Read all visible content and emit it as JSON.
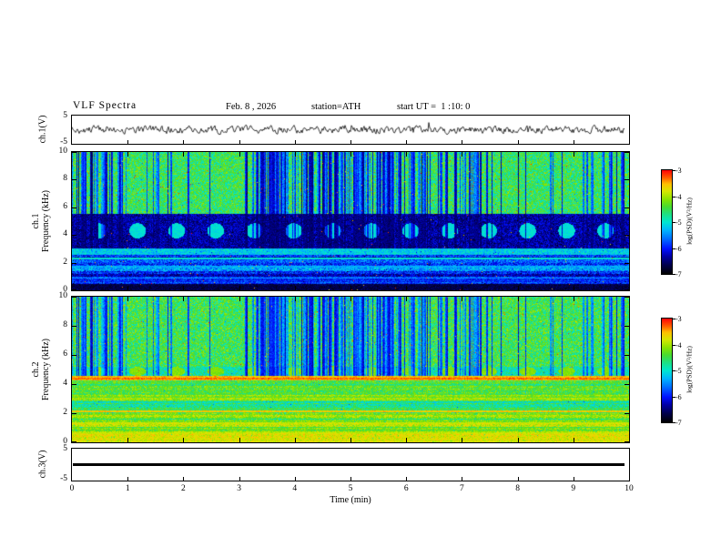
{
  "header": {
    "title": "VLF Spectra",
    "date": "Feb. 8 , 2026",
    "station": "station=ATH",
    "start_ut": "start UT =  1 :10: 0"
  },
  "panels": {
    "wave1": {
      "ylabel": "ch.1(V)",
      "yticks": [
        "5",
        "-5"
      ]
    },
    "spec1": {
      "ylabel1": "ch.1",
      "ylabel2": "Frequency (kHz)",
      "yticks": [
        10,
        8,
        6,
        4,
        2,
        0
      ]
    },
    "spec2": {
      "ylabel1": "ch.2",
      "ylabel2": "Frequency (kHz)",
      "yticks": [
        10,
        8,
        6,
        4,
        2,
        0
      ]
    },
    "wave3": {
      "ylabel": "ch.3(V)",
      "yticks": [
        "5",
        "-5"
      ]
    }
  },
  "xaxis": {
    "label": "Time (min)",
    "ticks": [
      0,
      1,
      2,
      3,
      4,
      5,
      6,
      7,
      8,
      9,
      10
    ]
  },
  "colorbar": {
    "label": "log(PSD)(V²/Hz)",
    "ticks": [
      -3,
      -4,
      -5,
      -6,
      -7
    ],
    "min": -7,
    "max": -3,
    "stops": [
      [
        0.0,
        "#000004"
      ],
      [
        0.08,
        "#00004a"
      ],
      [
        0.16,
        "#0000a0"
      ],
      [
        0.24,
        "#0010ff"
      ],
      [
        0.33,
        "#0068ff"
      ],
      [
        0.42,
        "#00b4ff"
      ],
      [
        0.5,
        "#00e8d0"
      ],
      [
        0.58,
        "#20e080"
      ],
      [
        0.65,
        "#48dc30"
      ],
      [
        0.72,
        "#88e400"
      ],
      [
        0.8,
        "#d8e800"
      ],
      [
        0.87,
        "#ffc000"
      ],
      [
        0.93,
        "#ff6000"
      ],
      [
        1.0,
        "#ff0808"
      ]
    ]
  },
  "chart_data": [
    {
      "type": "line",
      "name": "ch.1 time series",
      "ylabel": "ch.1(V)",
      "xlim": [
        0,
        10
      ],
      "ylim": [
        -5,
        5
      ],
      "mean_V": 0,
      "noise_amplitude_V": 1.5,
      "description": "continuous broadband noise trace centred on 0 V, occasional spikes to about ±3 V",
      "color": "#000000"
    },
    {
      "type": "heatmap",
      "name": "ch.1 spectrogram",
      "xlabel": "Time (min)",
      "ylabel": "ch.1 Frequency (kHz)",
      "xlim": [
        0,
        10
      ],
      "ylim": [
        0,
        10
      ],
      "zlabel": "log(PSD)(V²/Hz)",
      "zlim": [
        -7,
        -3
      ],
      "bands": [
        {
          "fmin": 5.5,
          "fmax": 10.01,
          "level": -4.55,
          "jitter": 1.1,
          "speckle": 0.006
        },
        {
          "fmin": 3.0,
          "fmax": 5.5,
          "level": -6.35,
          "jitter": 0.7,
          "speckle": 0.0015
        },
        {
          "fmin": 2.55,
          "fmax": 3.0,
          "level": -5.15,
          "jitter": 0.7,
          "speckle": 0.001
        },
        {
          "fmin": 1.2,
          "fmax": 2.55,
          "level": -5.75,
          "jitter": 0.9,
          "rows": 1.0,
          "speckle": 0.002
        },
        {
          "fmin": 0.45,
          "fmax": 1.2,
          "level": -6.15,
          "jitter": 0.7,
          "rows": 0.8,
          "speckle": 0.003
        },
        {
          "fmin": 0.0,
          "fmax": 0.45,
          "level": -6.7,
          "jitter": 0.4,
          "speckle": 0.004
        }
      ],
      "lines": [
        {
          "f": 2.3,
          "halfwidth": 0.06,
          "level": -5.0
        },
        {
          "f": 1.7,
          "halfwidth": 0.05,
          "level": -5.35
        },
        {
          "f": 0.9,
          "halfwidth": 0.05,
          "level": -5.6
        }
      ],
      "blobs": {
        "f_center": 4.3,
        "f_halfwidth": 0.55,
        "period_min": 0.7,
        "first_min": 0.48,
        "duration_min": 0.3,
        "level": -5.05,
        "description": "periodic brighter patches inside the 3-5.5 kHz low-power band"
      },
      "stripes": {
        "fmin": 3.0,
        "fmax": 10,
        "coverage": 0.34,
        "level": -6.55,
        "description": "clustered vertical low-power dropout stripes above 3 kHz"
      }
    },
    {
      "type": "heatmap",
      "name": "ch.2 spectrogram",
      "xlabel": "Time (min)",
      "ylabel": "ch.2 Frequency (kHz)",
      "xlim": [
        0,
        10
      ],
      "ylim": [
        0,
        10
      ],
      "zlabel": "log(PSD)(V²/Hz)",
      "zlim": [
        -7,
        -3
      ],
      "bands": [
        {
          "fmin": 5.2,
          "fmax": 10.01,
          "level": -4.5,
          "jitter": 1.1,
          "speckle": 0.005
        },
        {
          "fmin": 4.55,
          "fmax": 5.2,
          "level": -4.85,
          "jitter": 0.8,
          "speckle": 0.002
        },
        {
          "fmin": 4.25,
          "fmax": 4.55,
          "level": -3.55,
          "jitter": 0.5
        },
        {
          "fmin": 3.25,
          "fmax": 4.25,
          "level": -4.35,
          "jitter": 0.8,
          "rows": 0.7
        },
        {
          "fmin": 2.9,
          "fmax": 3.25,
          "level": -4.1,
          "jitter": 0.6,
          "rows": 0.5
        },
        {
          "fmin": 2.0,
          "fmax": 2.9,
          "level": -4.55,
          "jitter": 0.8,
          "rows": 0.8
        },
        {
          "fmin": 0.95,
          "fmax": 2.0,
          "level": -4.3,
          "jitter": 0.7,
          "rows": 0.9
        },
        {
          "fmin": 0.3,
          "fmax": 0.95,
          "level": -4.1,
          "jitter": 0.6,
          "rows": 0.7
        },
        {
          "fmin": 0.0,
          "fmax": 0.3,
          "level": -3.8,
          "jitter": 0.5
        }
      ],
      "lines": [
        {
          "f": 4.38,
          "halfwidth": 0.07,
          "level": -3.3
        },
        {
          "f": 2.12,
          "halfwidth": 0.07,
          "level": -3.6
        },
        {
          "f": 1.3,
          "halfwidth": 0.05,
          "level": -3.85
        },
        {
          "f": 0.62,
          "halfwidth": 0.05,
          "level": -3.9
        }
      ],
      "blobs": {
        "f_center": 4.87,
        "f_halfwidth": 0.3,
        "period_min": 0.7,
        "first_min": 0.48,
        "duration_min": 0.3,
        "level": -4.15,
        "description": "periodic brighter patches near 4.9 kHz"
      },
      "stripes": {
        "fmin": 4.55,
        "fmax": 10,
        "coverage": 0.3,
        "level": -6.3,
        "description": "clustered vertical low-power dropout stripes above 4.5 kHz"
      }
    },
    {
      "type": "line",
      "name": "ch.3 time series",
      "ylabel": "ch.3(V)",
      "xlim": [
        0,
        10
      ],
      "ylim": [
        -5,
        5
      ],
      "value_V": 0,
      "description": "flat thick line at 0 V (no signal)",
      "color": "#000000"
    }
  ]
}
